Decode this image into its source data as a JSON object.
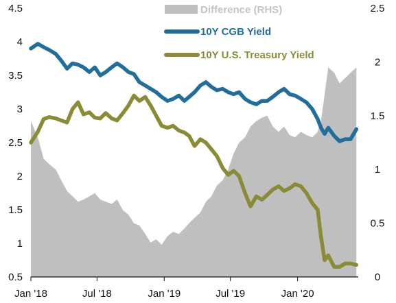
{
  "chart_data": {
    "type": "line",
    "x_ticks": [
      "Jan '18",
      "Jul '18",
      "Jan '19",
      "Jul '19",
      "Jan '20"
    ],
    "x_range": [
      "2018-01-01",
      "2020-06-15"
    ],
    "y_left": {
      "range": [
        0.5,
        4.5
      ],
      "ticks": [
        "0.5",
        "1",
        "1.5",
        "2",
        "2.5",
        "3",
        "3.5",
        "4",
        "4.5"
      ]
    },
    "y_right": {
      "range": [
        0,
        2.5
      ],
      "ticks": [
        "0",
        "0.5",
        "1",
        "1.5",
        "2",
        "2.5"
      ]
    },
    "grid": false,
    "legend_placement": "top-center",
    "series": [
      {
        "name": "Difference (RHS)",
        "kind": "area",
        "axis": "right",
        "color": "#bfbfbf",
        "x": [
          "2018-01-01",
          "2018-01-20",
          "2018-02-05",
          "2018-02-20",
          "2018-03-10",
          "2018-03-25",
          "2018-04-10",
          "2018-04-25",
          "2018-05-10",
          "2018-05-25",
          "2018-06-10",
          "2018-06-25",
          "2018-07-10",
          "2018-07-25",
          "2018-08-10",
          "2018-08-25",
          "2018-09-10",
          "2018-09-25",
          "2018-10-10",
          "2018-10-25",
          "2018-11-10",
          "2018-11-25",
          "2018-12-10",
          "2018-12-25",
          "2019-01-10",
          "2019-01-25",
          "2019-02-10",
          "2019-02-25",
          "2019-03-10",
          "2019-03-25",
          "2019-04-10",
          "2019-04-25",
          "2019-05-10",
          "2019-05-25",
          "2019-06-10",
          "2019-06-25",
          "2019-07-10",
          "2019-07-25",
          "2019-08-10",
          "2019-08-25",
          "2019-09-10",
          "2019-09-25",
          "2019-10-10",
          "2019-10-25",
          "2019-11-10",
          "2019-11-25",
          "2019-12-10",
          "2019-12-25",
          "2020-01-10",
          "2020-01-25",
          "2020-02-10",
          "2020-02-25",
          "2020-03-05",
          "2020-03-15",
          "2020-03-25",
          "2020-04-10",
          "2020-04-25",
          "2020-05-10",
          "2020-05-25",
          "2020-06-10"
        ],
        "values": [
          1.45,
          1.3,
          1.1,
          1.05,
          1.0,
          0.9,
          0.8,
          0.75,
          0.7,
          0.72,
          0.75,
          0.78,
          0.72,
          0.7,
          0.68,
          0.72,
          0.62,
          0.58,
          0.5,
          0.48,
          0.4,
          0.32,
          0.35,
          0.3,
          0.38,
          0.42,
          0.4,
          0.45,
          0.5,
          0.55,
          0.6,
          0.7,
          0.75,
          0.85,
          0.9,
          1.0,
          1.15,
          1.25,
          1.3,
          1.4,
          1.45,
          1.48,
          1.5,
          1.4,
          1.35,
          1.4,
          1.32,
          1.3,
          1.35,
          1.32,
          1.3,
          1.35,
          1.45,
          1.7,
          1.95,
          1.9,
          1.8,
          1.85,
          1.9,
          1.95
        ]
      },
      {
        "name": "10Y CGB Yield",
        "kind": "line",
        "axis": "left",
        "color": "#1f6e9c",
        "x": [
          "2018-01-01",
          "2018-01-20",
          "2018-02-05",
          "2018-02-20",
          "2018-03-10",
          "2018-03-25",
          "2018-04-10",
          "2018-04-25",
          "2018-05-10",
          "2018-05-25",
          "2018-06-10",
          "2018-06-25",
          "2018-07-10",
          "2018-07-25",
          "2018-08-10",
          "2018-08-25",
          "2018-09-10",
          "2018-09-25",
          "2018-10-10",
          "2018-10-25",
          "2018-11-10",
          "2018-11-25",
          "2018-12-10",
          "2018-12-25",
          "2019-01-10",
          "2019-01-25",
          "2019-02-10",
          "2019-02-25",
          "2019-03-10",
          "2019-03-25",
          "2019-04-10",
          "2019-04-25",
          "2019-05-10",
          "2019-05-25",
          "2019-06-10",
          "2019-06-25",
          "2019-07-10",
          "2019-07-25",
          "2019-08-10",
          "2019-08-25",
          "2019-09-10",
          "2019-09-25",
          "2019-10-10",
          "2019-10-25",
          "2019-11-10",
          "2019-11-25",
          "2019-12-10",
          "2019-12-25",
          "2020-01-10",
          "2020-01-25",
          "2020-02-10",
          "2020-02-25",
          "2020-03-05",
          "2020-03-15",
          "2020-03-25",
          "2020-04-10",
          "2020-04-25",
          "2020-05-10",
          "2020-05-25",
          "2020-06-10"
        ],
        "values": [
          3.9,
          3.97,
          3.92,
          3.88,
          3.82,
          3.72,
          3.6,
          3.68,
          3.66,
          3.62,
          3.55,
          3.62,
          3.5,
          3.55,
          3.62,
          3.68,
          3.62,
          3.55,
          3.52,
          3.4,
          3.35,
          3.3,
          3.25,
          3.18,
          3.12,
          3.15,
          3.2,
          3.12,
          3.18,
          3.25,
          3.35,
          3.4,
          3.33,
          3.28,
          3.3,
          3.25,
          3.22,
          3.25,
          3.15,
          3.1,
          3.07,
          3.12,
          3.12,
          3.18,
          3.25,
          3.3,
          3.22,
          3.2,
          3.15,
          3.1,
          3.0,
          2.85,
          2.72,
          2.63,
          2.72,
          2.6,
          2.52,
          2.55,
          2.55,
          2.7
        ]
      },
      {
        "name": "10Y U.S. Treasury Yield",
        "kind": "line",
        "axis": "left",
        "color": "#8b8b36",
        "x": [
          "2018-01-01",
          "2018-01-20",
          "2018-02-05",
          "2018-02-20",
          "2018-03-10",
          "2018-03-25",
          "2018-04-10",
          "2018-04-25",
          "2018-05-10",
          "2018-05-25",
          "2018-06-10",
          "2018-06-25",
          "2018-07-10",
          "2018-07-25",
          "2018-08-10",
          "2018-08-25",
          "2018-09-10",
          "2018-09-25",
          "2018-10-10",
          "2018-10-25",
          "2018-11-10",
          "2018-11-25",
          "2018-12-10",
          "2018-12-25",
          "2019-01-10",
          "2019-01-25",
          "2019-02-10",
          "2019-02-25",
          "2019-03-10",
          "2019-03-25",
          "2019-04-10",
          "2019-04-25",
          "2019-05-10",
          "2019-05-25",
          "2019-06-10",
          "2019-06-25",
          "2019-07-10",
          "2019-07-25",
          "2019-08-10",
          "2019-08-25",
          "2019-09-10",
          "2019-09-25",
          "2019-10-10",
          "2019-10-25",
          "2019-11-10",
          "2019-11-25",
          "2019-12-10",
          "2019-12-25",
          "2020-01-10",
          "2020-01-25",
          "2020-02-10",
          "2020-02-25",
          "2020-03-05",
          "2020-03-15",
          "2020-03-25",
          "2020-04-10",
          "2020-04-25",
          "2020-05-10",
          "2020-05-25",
          "2020-06-10"
        ],
        "values": [
          2.5,
          2.66,
          2.85,
          2.88,
          2.86,
          2.83,
          2.8,
          3.0,
          3.1,
          2.92,
          2.95,
          2.87,
          2.86,
          2.94,
          2.86,
          2.83,
          2.94,
          3.05,
          3.2,
          3.12,
          3.18,
          3.05,
          2.9,
          2.75,
          2.72,
          2.75,
          2.68,
          2.65,
          2.6,
          2.45,
          2.55,
          2.5,
          2.4,
          2.3,
          2.12,
          2.02,
          2.08,
          2.0,
          1.75,
          1.55,
          1.7,
          1.65,
          1.72,
          1.8,
          1.85,
          1.78,
          1.82,
          1.88,
          1.85,
          1.75,
          1.6,
          1.5,
          1.1,
          0.75,
          0.82,
          0.65,
          0.65,
          0.7,
          0.7,
          0.68
        ]
      }
    ]
  }
}
